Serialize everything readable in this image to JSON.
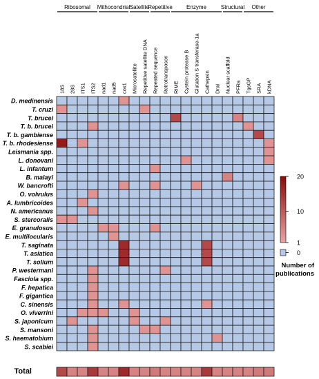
{
  "chart_data": {
    "type": "heatmap",
    "groups": [
      {
        "label": "Ribosomal",
        "span": [
          0,
          3
        ]
      },
      {
        "label": "Mithocondrial",
        "span": [
          4,
          6
        ]
      },
      {
        "label": "Satellite",
        "span": [
          7,
          8
        ]
      },
      {
        "label": "Repetitive",
        "span": [
          9,
          10
        ]
      },
      {
        "label": "Enzyme",
        "span": [
          11,
          15
        ]
      },
      {
        "label": "Structural",
        "span": [
          16,
          17
        ]
      },
      {
        "label": "Other",
        "span": [
          18,
          20
        ]
      }
    ],
    "columns": [
      "18S",
      "28S",
      "ITS1",
      "ITS2",
      "nad1",
      "nad5",
      "cox1",
      "Microsatellite",
      "Repetitive satellite DNA",
      "Repeated sequence",
      "Retrotransposon",
      "RIME",
      "Cystein protease B",
      "Glutation S transferase-1a",
      "Cathepsin",
      "DraI",
      "Nuclear scaffold",
      "PFRa",
      "TgsGP",
      "SRA",
      "kDNA"
    ],
    "rows": [
      "D. medinensis",
      "T. cruzi",
      "T. brucei",
      "T. b. brucei",
      "T. b. gambiense",
      "T. b. rhodesiense",
      "Leismania spp.",
      "L. donovani",
      "L. infantum",
      "B. malayi",
      "W. bancrofti",
      "O. volvulus",
      "A. lumbricoides",
      "N. americanus",
      "S. stercoralis",
      "E. granulosus",
      "E. multilocularis",
      "T. saginata",
      "T. asiatica",
      "T. solium",
      "P. westermani",
      "Fasciola spp.",
      "F. hepatica",
      "F. gigantica",
      "C. sinensis",
      "O. viverrini",
      "S. japonicum",
      "S. mansoni",
      "S. haematobium",
      "S. scabiei"
    ],
    "values": [
      [
        0,
        0,
        0,
        0,
        0,
        0,
        3,
        0,
        0,
        0,
        0,
        0,
        0,
        0,
        0,
        0,
        0,
        0,
        0,
        0,
        0
      ],
      [
        3,
        0,
        0,
        0,
        0,
        0,
        0,
        0,
        3,
        0,
        0,
        0,
        0,
        0,
        0,
        0,
        0,
        0,
        0,
        0,
        0
      ],
      [
        0,
        0,
        0,
        0,
        0,
        0,
        0,
        0,
        0,
        0,
        0,
        12,
        0,
        0,
        0,
        0,
        0,
        5,
        0,
        0,
        0
      ],
      [
        0,
        0,
        0,
        3,
        0,
        0,
        0,
        0,
        0,
        0,
        0,
        0,
        0,
        0,
        0,
        0,
        0,
        0,
        3,
        0,
        0
      ],
      [
        0,
        0,
        0,
        0,
        0,
        0,
        0,
        0,
        0,
        0,
        0,
        0,
        0,
        0,
        0,
        0,
        0,
        0,
        0,
        12,
        0
      ],
      [
        18,
        0,
        3,
        0,
        0,
        0,
        0,
        0,
        0,
        0,
        0,
        0,
        0,
        0,
        0,
        0,
        0,
        0,
        0,
        0,
        3
      ],
      [
        0,
        0,
        0,
        0,
        0,
        0,
        0,
        0,
        0,
        0,
        0,
        0,
        0,
        0,
        0,
        0,
        0,
        0,
        0,
        0,
        3
      ],
      [
        0,
        0,
        0,
        0,
        0,
        0,
        0,
        0,
        0,
        0,
        0,
        0,
        3,
        0,
        0,
        0,
        0,
        0,
        0,
        0,
        3
      ],
      [
        0,
        0,
        0,
        0,
        0,
        0,
        0,
        0,
        0,
        3,
        0,
        0,
        0,
        0,
        0,
        0,
        0,
        0,
        0,
        0,
        0
      ],
      [
        0,
        0,
        0,
        0,
        0,
        0,
        0,
        0,
        0,
        0,
        0,
        0,
        0,
        0,
        0,
        0,
        5,
        0,
        0,
        0,
        0
      ],
      [
        0,
        0,
        0,
        0,
        0,
        0,
        3,
        0,
        0,
        3,
        0,
        0,
        0,
        3,
        0,
        0,
        0,
        0,
        0,
        0,
        0
      ],
      [
        0,
        0,
        0,
        3,
        0,
        0,
        0,
        0,
        0,
        0,
        0,
        0,
        0,
        0,
        0,
        0,
        0,
        0,
        0,
        0,
        0
      ],
      [
        0,
        0,
        3,
        0,
        0,
        0,
        0,
        0,
        0,
        0,
        0,
        0,
        0,
        0,
        0,
        0,
        0,
        0,
        0,
        0,
        0
      ],
      [
        0,
        0,
        0,
        3,
        0,
        0,
        0,
        0,
        0,
        0,
        0,
        0,
        0,
        0,
        0,
        0,
        0,
        0,
        0,
        0,
        0
      ],
      [
        3,
        3,
        0,
        0,
        0,
        0,
        0,
        0,
        0,
        0,
        0,
        0,
        0,
        0,
        0,
        0,
        0,
        0,
        0,
        0,
        0
      ],
      [
        0,
        0,
        0,
        0,
        3,
        3,
        0,
        0,
        0,
        3,
        0,
        0,
        0,
        0,
        0,
        0,
        0,
        0,
        0,
        0,
        0
      ],
      [
        0,
        0,
        0,
        0,
        0,
        3,
        0,
        0,
        0,
        0,
        0,
        0,
        0,
        0,
        0,
        0,
        0,
        0,
        0,
        0,
        0
      ],
      [
        0,
        0,
        0,
        0,
        0,
        0,
        16,
        0,
        0,
        0,
        0,
        0,
        0,
        0,
        12,
        0,
        0,
        0,
        0,
        0,
        0
      ],
      [
        0,
        0,
        0,
        0,
        0,
        0,
        16,
        0,
        0,
        0,
        0,
        0,
        0,
        0,
        12,
        0,
        0,
        0,
        0,
        0,
        0
      ],
      [
        0,
        0,
        0,
        0,
        0,
        0,
        16,
        0,
        0,
        0,
        0,
        0,
        0,
        0,
        12,
        0,
        0,
        0,
        0,
        0,
        0
      ],
      [
        0,
        0,
        0,
        3,
        0,
        0,
        0,
        0,
        0,
        0,
        3,
        0,
        0,
        0,
        0,
        0,
        0,
        0,
        0,
        0,
        0
      ],
      [
        0,
        0,
        0,
        3,
        0,
        0,
        0,
        0,
        0,
        0,
        0,
        0,
        0,
        0,
        0,
        0,
        0,
        0,
        0,
        0,
        0
      ],
      [
        0,
        0,
        0,
        3,
        0,
        0,
        0,
        0,
        0,
        0,
        0,
        0,
        0,
        0,
        0,
        0,
        0,
        0,
        0,
        0,
        0
      ],
      [
        0,
        0,
        0,
        3,
        0,
        0,
        0,
        0,
        0,
        0,
        0,
        0,
        0,
        0,
        0,
        0,
        0,
        0,
        0,
        0,
        0
      ],
      [
        0,
        0,
        0,
        3,
        0,
        0,
        3,
        0,
        0,
        0,
        0,
        0,
        0,
        0,
        3,
        0,
        0,
        0,
        0,
        0,
        0
      ],
      [
        0,
        0,
        3,
        3,
        3,
        0,
        0,
        3,
        0,
        0,
        0,
        0,
        0,
        0,
        0,
        0,
        0,
        0,
        0,
        0,
        0
      ],
      [
        0,
        3,
        0,
        0,
        0,
        0,
        0,
        3,
        0,
        0,
        3,
        0,
        0,
        0,
        0,
        0,
        0,
        0,
        0,
        0,
        0
      ],
      [
        0,
        0,
        0,
        3,
        0,
        0,
        0,
        0,
        3,
        3,
        0,
        0,
        0,
        0,
        0,
        0,
        0,
        0,
        0,
        0,
        0
      ],
      [
        0,
        0,
        0,
        3,
        0,
        0,
        0,
        0,
        0,
        0,
        0,
        0,
        0,
        0,
        0,
        3,
        0,
        0,
        0,
        0,
        0
      ],
      [
        0,
        0,
        0,
        3,
        0,
        0,
        0,
        0,
        0,
        0,
        0,
        0,
        0,
        0,
        0,
        0,
        0,
        0,
        0,
        0,
        0
      ]
    ],
    "total_label": "Total",
    "totals": [
      12,
      5,
      5,
      14,
      5,
      5,
      16,
      5,
      5,
      6,
      5,
      5,
      5,
      5,
      14,
      5,
      5,
      5,
      5,
      6,
      6
    ],
    "scale": {
      "min": 1,
      "max": 20,
      "ticks": [
        20,
        10,
        1
      ],
      "zero_tick": 0
    },
    "legend_label": "Number of publications",
    "colors": {
      "zero": "#b5c8e6",
      "low": "#e9a3a3",
      "high": "#8b0a0a",
      "grid": "#1a1a1a",
      "background": "#ffffff"
    }
  }
}
